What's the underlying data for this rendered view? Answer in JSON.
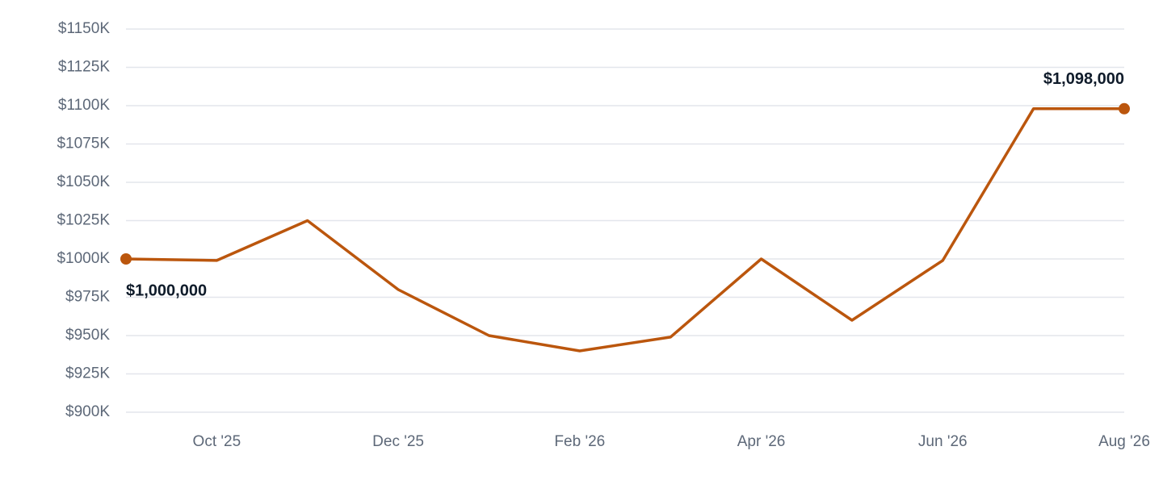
{
  "chart_data": {
    "type": "line",
    "categories": [
      null,
      "Oct '25",
      null,
      "Dec '25",
      null,
      "Feb '26",
      null,
      "Apr '26",
      null,
      "Jun '26",
      null,
      "Aug '26"
    ],
    "series": [
      {
        "color": "#bb560d",
        "values": [
          1000,
          999,
          1025,
          980,
          950,
          940,
          949,
          1000,
          960,
          999,
          1098,
          1098
        ],
        "value_labels": [
          "$1,000,000",
          null,
          null,
          null,
          null,
          null,
          null,
          null,
          null,
          null,
          null,
          "$1,098,000"
        ]
      }
    ],
    "ylim": [
      900,
      1150
    ],
    "yticks": [
      {
        "value": 900,
        "label": "$900K"
      },
      {
        "value": 925,
        "label": "$925K"
      },
      {
        "value": 950,
        "label": "$950K"
      },
      {
        "value": 975,
        "label": "$975K"
      },
      {
        "value": 1000,
        "label": "$1000K"
      },
      {
        "value": 1025,
        "label": "$1025K"
      },
      {
        "value": 1050,
        "label": "$1050K"
      },
      {
        "value": 1075,
        "label": "$1075K"
      },
      {
        "value": 1100,
        "label": "$1100K"
      },
      {
        "value": 1125,
        "label": "$1125K"
      },
      {
        "value": 1150,
        "label": "$1150K"
      }
    ],
    "grid": true
  }
}
